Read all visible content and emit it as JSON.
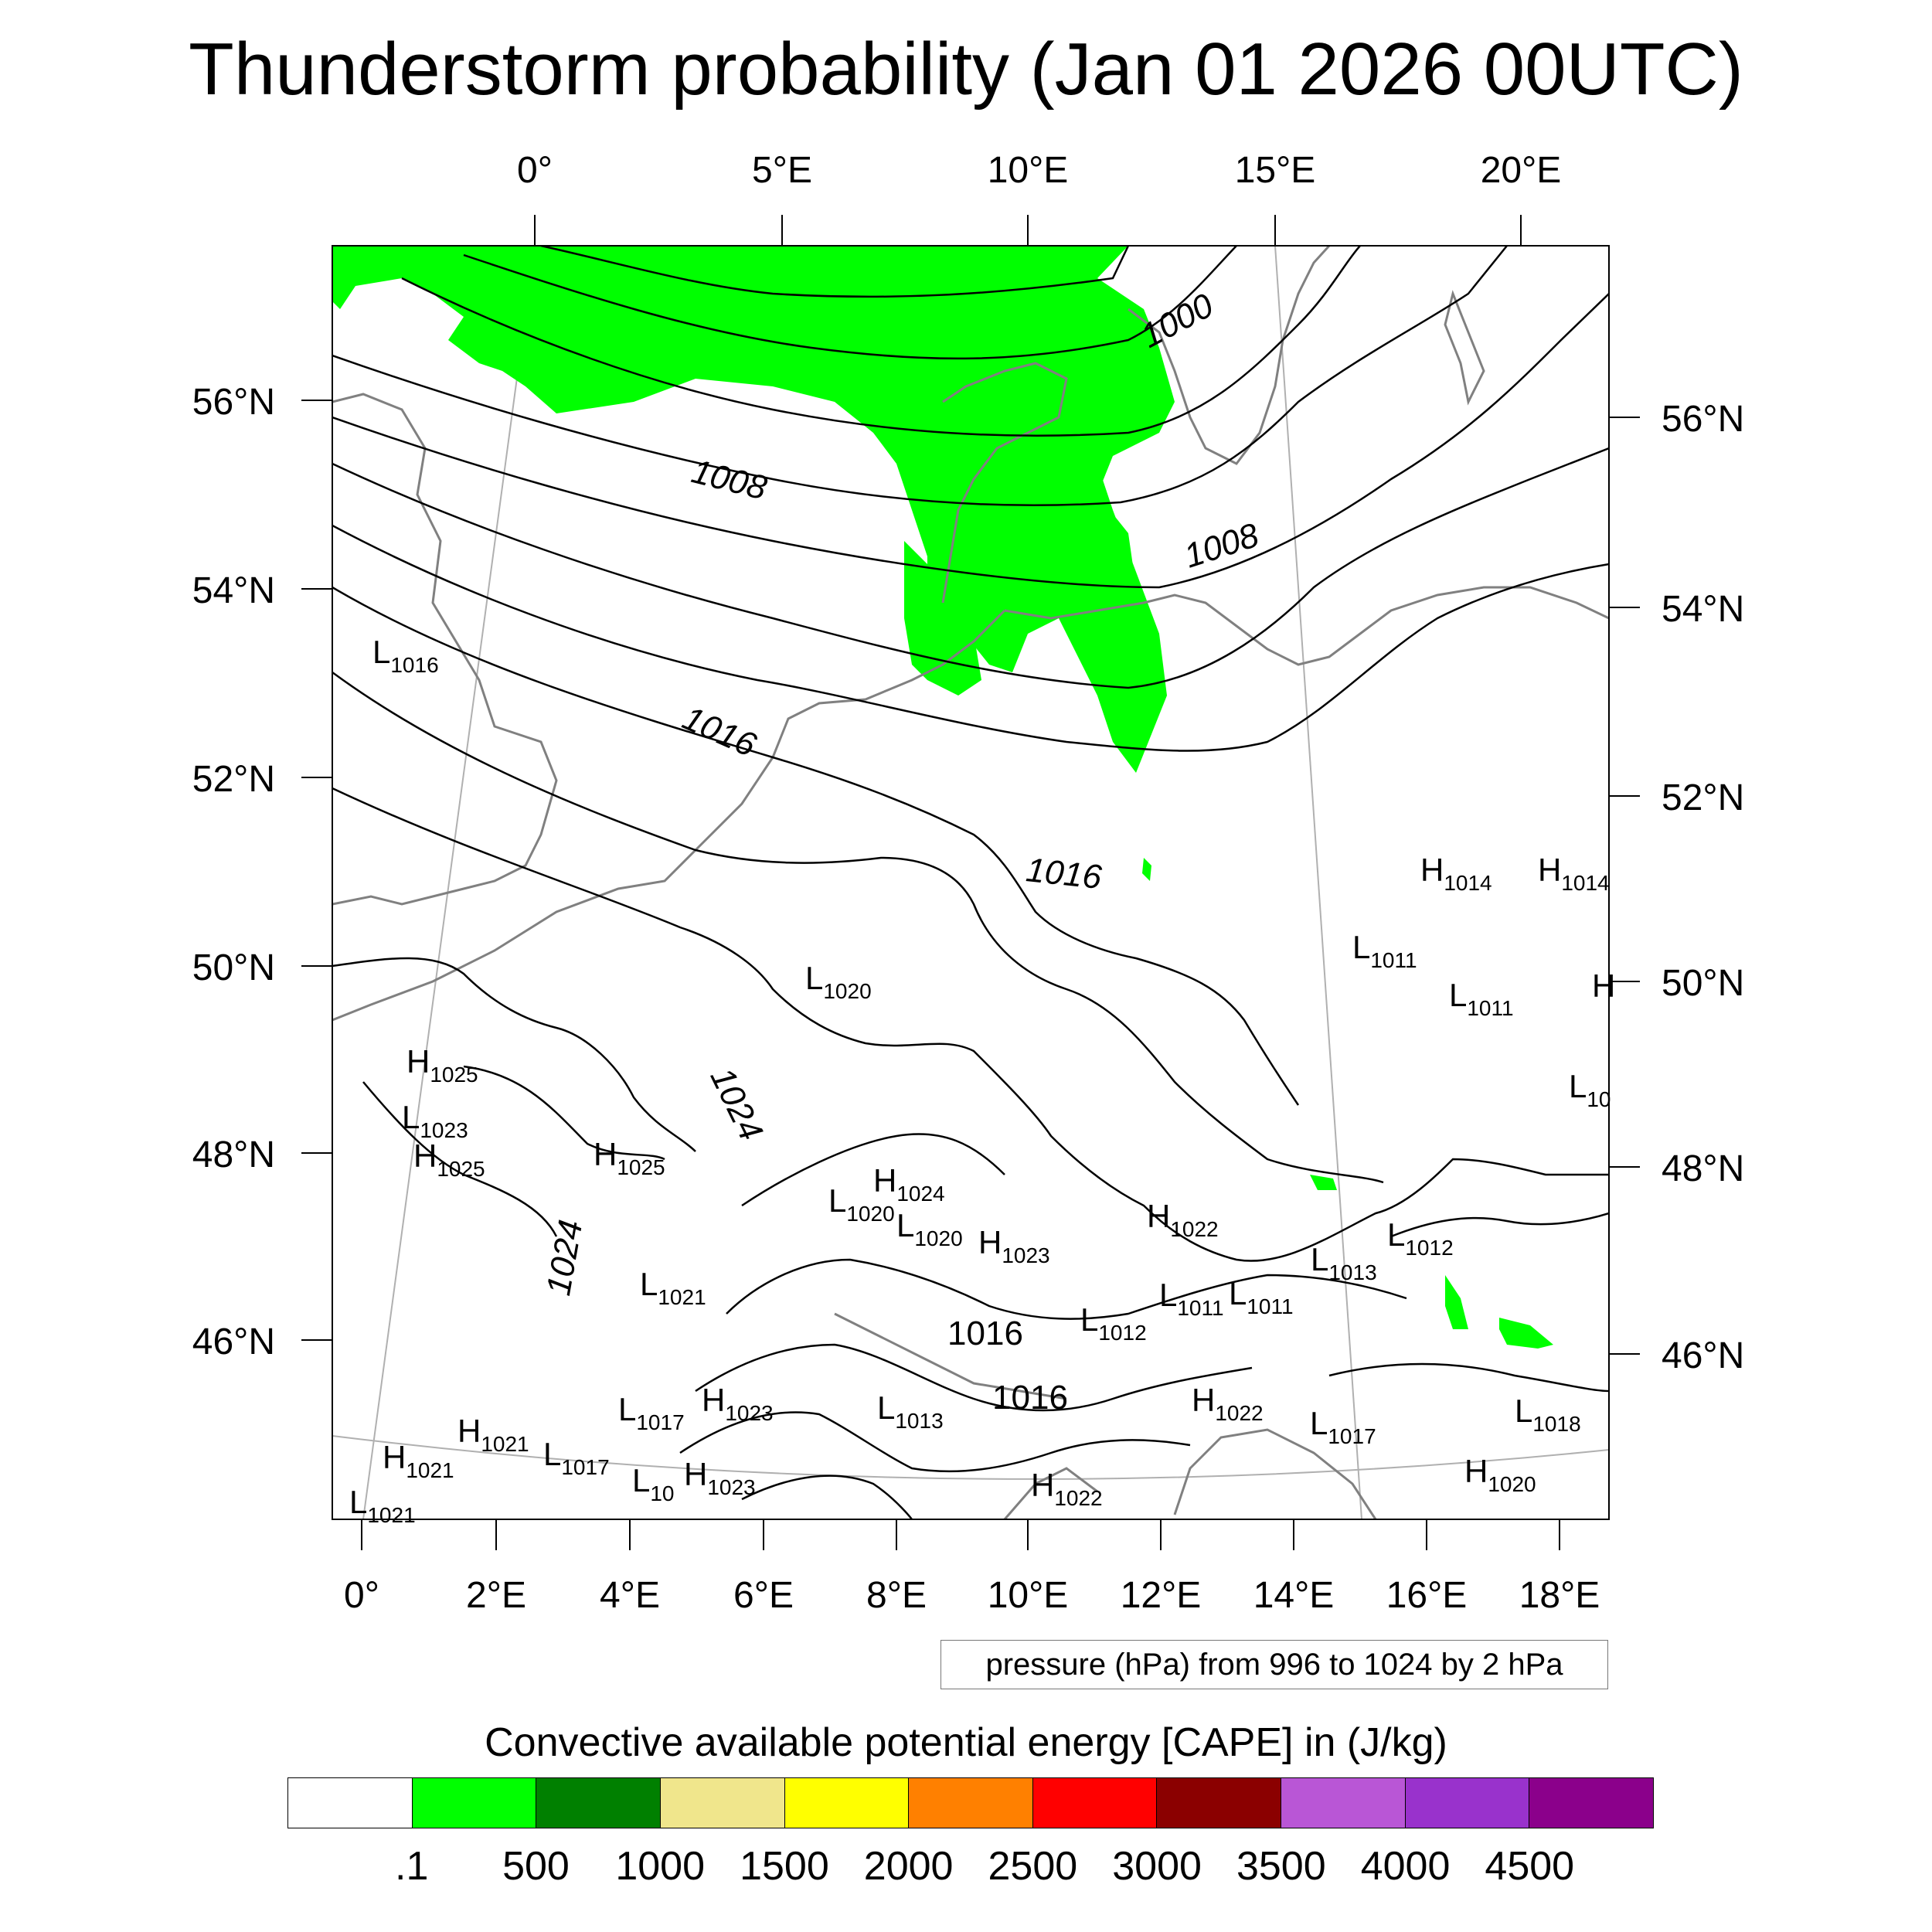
{
  "title": "Thunderstorm probability (Jan 01 2026 00UTC)",
  "axes": {
    "top_lon_labels": [
      "0°",
      "5°E",
      "10°E",
      "15°E",
      "20°E"
    ],
    "bottom_lon_labels": [
      "0°",
      "2°E",
      "4°E",
      "6°E",
      "8°E",
      "10°E",
      "12°E",
      "14°E",
      "16°E",
      "18°E"
    ],
    "left_lat_labels": [
      "56°N",
      "54°N",
      "52°N",
      "50°N",
      "48°N",
      "46°N"
    ],
    "right_lat_labels": [
      "56°N",
      "54°N",
      "52°N",
      "50°N",
      "48°N",
      "46°N"
    ]
  },
  "isobar_labels": [
    "1000",
    "1008",
    "1008",
    "1016",
    "1016",
    "1024",
    "1024",
    "1016",
    "1016"
  ],
  "pressure_centers": [
    {
      "type": "L",
      "value": "1016"
    },
    {
      "type": "H",
      "value": "1014"
    },
    {
      "type": "H",
      "value": "1014"
    },
    {
      "type": "L",
      "value": "1011"
    },
    {
      "type": "L",
      "value": "1011"
    },
    {
      "type": "L",
      "value": "1020"
    },
    {
      "type": "H",
      "value": "1025"
    },
    {
      "type": "L",
      "value": "1023"
    },
    {
      "type": "H",
      "value": "1025"
    },
    {
      "type": "H",
      "value": "1025"
    },
    {
      "type": "H",
      "value": "1024"
    },
    {
      "type": "L",
      "value": "1020"
    },
    {
      "type": "L",
      "value": "1020"
    },
    {
      "type": "H",
      "value": "1022"
    },
    {
      "type": "H",
      "value": "1023"
    },
    {
      "type": "L",
      "value": "1012"
    },
    {
      "type": "L",
      "value": "1013"
    },
    {
      "type": "L",
      "value": "1021"
    },
    {
      "type": "L",
      "value": "1011"
    },
    {
      "type": "L",
      "value": "1011"
    },
    {
      "type": "L",
      "value": "1012"
    },
    {
      "type": "L",
      "value": "1017"
    },
    {
      "type": "H",
      "value": "1023"
    },
    {
      "type": "L",
      "value": "1013"
    },
    {
      "type": "H",
      "value": "1022"
    },
    {
      "type": "L",
      "value": "1017"
    },
    {
      "type": "L",
      "value": "1018"
    },
    {
      "type": "H",
      "value": "1021"
    },
    {
      "type": "H",
      "value": "1021"
    },
    {
      "type": "L",
      "value": "1017"
    },
    {
      "type": "L",
      "value": "10"
    },
    {
      "type": "H",
      "value": "1023"
    },
    {
      "type": "H",
      "value": "1022"
    },
    {
      "type": "H",
      "value": "1020"
    },
    {
      "type": "L",
      "value": "1021"
    },
    {
      "type": "L",
      "value": "10"
    },
    {
      "type": "H",
      "value": ""
    }
  ],
  "info_box": "pressure (hPa) from 996 to 1024 by 2 hPa",
  "legend": {
    "title": "Convective available potential energy [CAPE] in (J/kg)",
    "colors": [
      "#ffffff",
      "#00ff00",
      "#008000",
      "#f0e68c",
      "#ffff00",
      "#ff8000",
      "#ff0000",
      "#8b0000",
      "#b956d6",
      "#9932cc",
      "#8b008b"
    ],
    "ticks": [
      ".1",
      "500",
      "1000",
      "1500",
      "2000",
      "2500",
      "3000",
      "3500",
      "4000",
      "4500"
    ]
  },
  "colors": {
    "cape_fill": "#00ff00",
    "isobar": "#000000",
    "coastline": "#808080",
    "grid": "#b0b0b0"
  }
}
